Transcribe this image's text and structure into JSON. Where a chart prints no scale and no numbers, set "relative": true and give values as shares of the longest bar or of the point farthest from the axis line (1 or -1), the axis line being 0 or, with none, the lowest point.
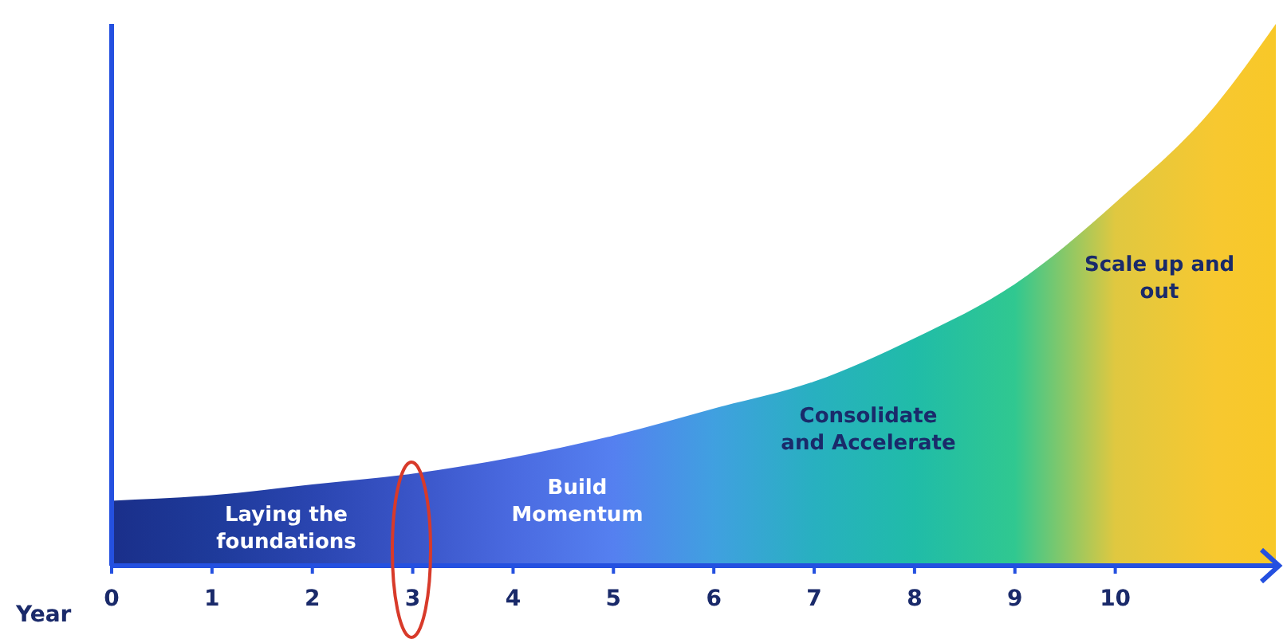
{
  "chart_data": {
    "type": "area",
    "relative": true,
    "xlabel": "Year",
    "x": [
      0,
      1,
      2,
      3,
      4,
      5,
      6,
      7,
      8,
      9,
      10,
      11,
      11.6
    ],
    "xlim": [
      0,
      11.6
    ],
    "xticks": [
      0,
      1,
      2,
      3,
      4,
      5,
      6,
      7,
      8,
      9,
      10
    ],
    "series": [
      {
        "values": [
          0.12,
          0.13,
          0.15,
          0.17,
          0.2,
          0.24,
          0.29,
          0.34,
          0.42,
          0.52,
          0.67,
          0.85,
          1
        ],
        "colors": [
          "#1a2f8a",
          "#1e3a9a",
          "#2a45b0",
          "#3a55c8",
          "#4a6ae0",
          "#5580f0",
          "#40a0e0",
          "#28b0c0",
          "#20bca8",
          "#30c890",
          "#e0c840",
          "#f7c830",
          "#f8c828"
        ]
      }
    ],
    "annotations": [
      "Laying the foundations",
      "Build Momentum",
      "Consolidate and Accelerate",
      "Scale up and out"
    ],
    "grid": false,
    "legend": false
  }
}
